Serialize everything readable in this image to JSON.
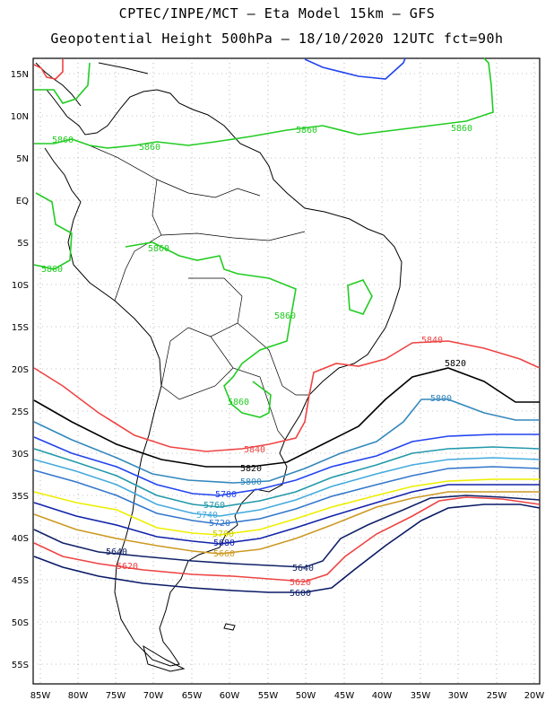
{
  "header": {
    "line1": "CPTEC/INPE/MCT –  Eta Model 15km – GFS",
    "line2": "Geopotential Height 500hPa – 18/10/2020 12UTC fct=90h"
  },
  "axes": {
    "lat_labels": [
      "15N",
      "10N",
      "5N",
      "EQ",
      "5S",
      "10S",
      "15S",
      "20S",
      "25S",
      "30S",
      "35S",
      "40S",
      "45S",
      "50S",
      "55S"
    ],
    "lon_labels": [
      "85W",
      "80W",
      "75W",
      "70W",
      "65W",
      "60W",
      "55W",
      "50W",
      "45W",
      "40W",
      "35W",
      "30W",
      "25W",
      "20W"
    ]
  },
  "colors": {
    "c5860": "#22cc22",
    "c5840": "#ee4444",
    "c5820": "#000000",
    "c5800": "#3388bb",
    "c5780": "#2244ee",
    "c5760": "#2299aa",
    "c5740": "#44aadd",
    "c5720": "#3377cc",
    "c5700": "#eeee00",
    "c5680": "#1122aa",
    "c5660": "#cc9922",
    "c5640": "#112266",
    "c5620": "#ee4444",
    "c5600": "#0a1a66",
    "coast": "#000000"
  },
  "contour_labels": {
    "g1": "5860",
    "g2": "5860",
    "g3": "5860",
    "g4": "5860",
    "g5": "5860",
    "g6": "5860",
    "g7": "5860",
    "r5840a": "5840",
    "r5840b": "5840",
    "k5820a": "5820",
    "k5820b": "5820",
    "b5800a": "5800",
    "b5800b": "5800",
    "l5780": "5780",
    "l5760": "5760",
    "l5740": "5740",
    "l5720": "5720",
    "l5700": "5700",
    "l5680": "5680",
    "l5660": "5660",
    "l5640a": "5640",
    "l5640b": "5640",
    "l5620a": "5620",
    "l5620b": "5620",
    "l5600": "5600"
  }
}
